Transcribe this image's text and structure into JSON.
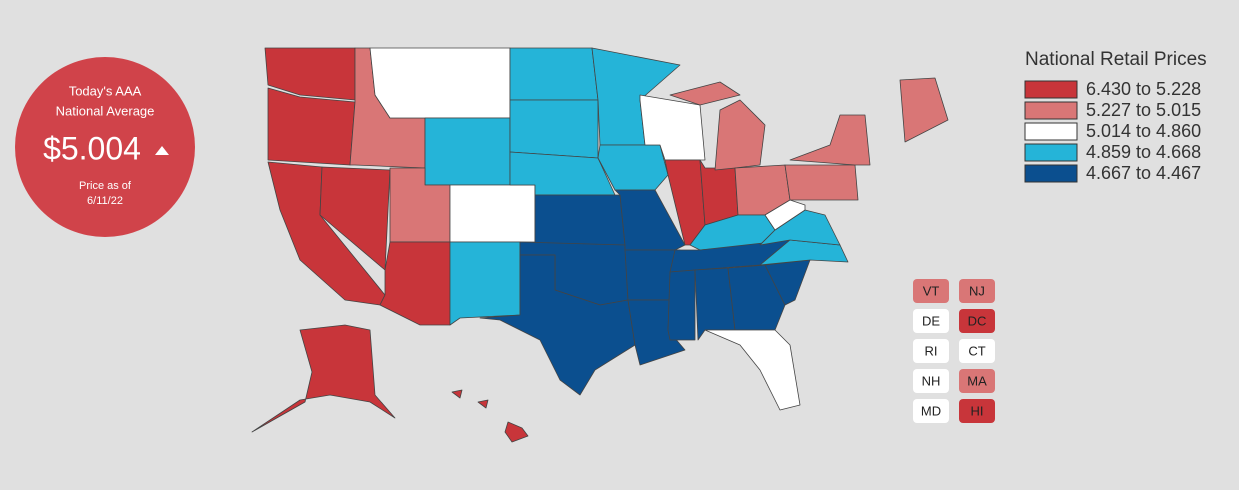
{
  "badge": {
    "line1": "Today's AAA",
    "line2": "National Average",
    "price": "$5.004",
    "date_line1": "Price as of",
    "date_line2": "6/11/22"
  },
  "legend": {
    "title": "National Retail Prices",
    "items": [
      {
        "label": "6.430 to 5.228",
        "color": "#c8353a"
      },
      {
        "label": "5.227 to 5.015",
        "color": "#d97676"
      },
      {
        "label": "5.014 to 4.860",
        "color": "#ffffff"
      },
      {
        "label": "4.859 to 4.668",
        "color": "#25b4d8"
      },
      {
        "label": "4.667 to 4.467",
        "color": "#0b4f8f"
      }
    ]
  },
  "small_states": [
    {
      "label": "VT",
      "color": "#d97676"
    },
    {
      "label": "NJ",
      "color": "#d97676"
    },
    {
      "label": "DE",
      "color": "#ffffff"
    },
    {
      "label": "DC",
      "color": "#c8353a"
    },
    {
      "label": "RI",
      "color": "#ffffff"
    },
    {
      "label": "CT",
      "color": "#ffffff"
    },
    {
      "label": "NH",
      "color": "#ffffff"
    },
    {
      "label": "MA",
      "color": "#d97676"
    },
    {
      "label": "MD",
      "color": "#ffffff"
    },
    {
      "label": "HI",
      "color": "#c8353a"
    }
  ]
}
